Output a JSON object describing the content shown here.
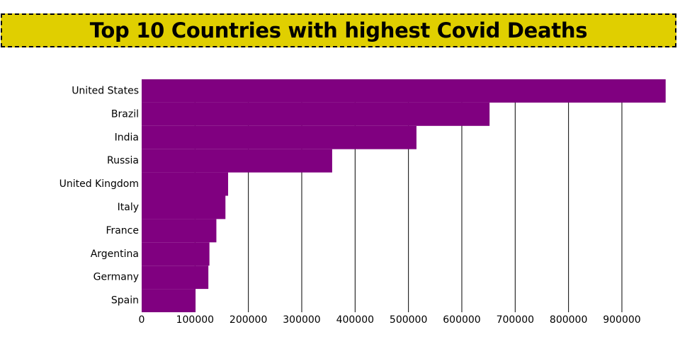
{
  "colors": {
    "banner": "#e0cf00",
    "bar": "#800080",
    "grid": "#000000"
  },
  "chart_data": {
    "type": "bar",
    "orientation": "horizontal",
    "title": "Top 10 Countries with highest Covid Deaths",
    "categories": [
      "United States",
      "Brazil",
      "India",
      "Russia",
      "United Kingdom",
      "Italy",
      "France",
      "Argentina",
      "Germany",
      "Spain"
    ],
    "values": [
      982000,
      652000,
      515000,
      357000,
      162000,
      157000,
      140000,
      127000,
      125000,
      101000
    ],
    "xlim": [
      0,
      985000
    ],
    "xticks": [
      0,
      100000,
      200000,
      300000,
      400000,
      500000,
      600000,
      700000,
      800000,
      900000
    ],
    "grid": true
  }
}
